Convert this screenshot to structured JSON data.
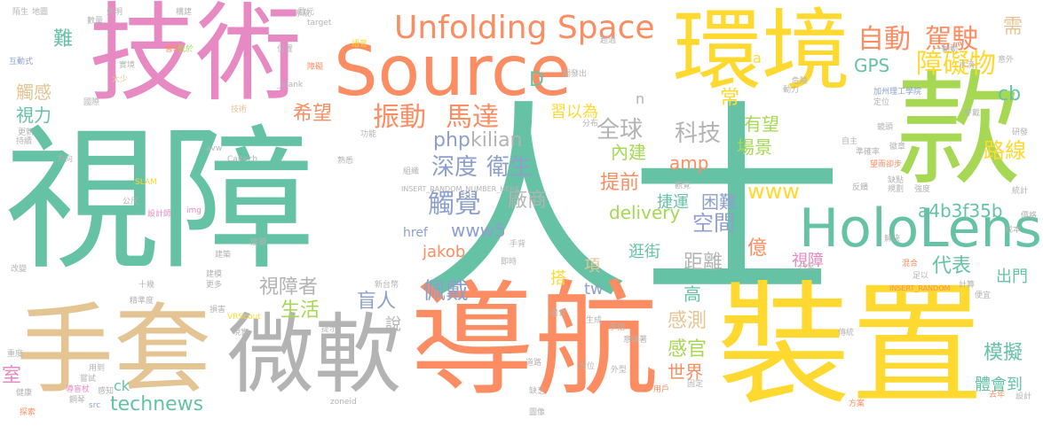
{
  "words": [
    {
      "text": "視障",
      "color": "#66c2a5"
    },
    {
      "text": "人士",
      "color": "#66c2a5"
    },
    {
      "text": "導航",
      "color": "#fc8d62"
    },
    {
      "text": "裝置",
      "color": "#ffd92f"
    },
    {
      "text": "技術",
      "color": "#e78ac3"
    },
    {
      "text": "Source",
      "color": "#fc8d62"
    },
    {
      "text": "環境",
      "color": "#ffd92f"
    },
    {
      "text": "款",
      "color": "#a6d854"
    },
    {
      "text": "手套",
      "color": "#e5c494"
    },
    {
      "text": "微軟",
      "color": "#b3b3b3"
    },
    {
      "text": "HoloLens",
      "color": "#66c2a5"
    },
    {
      "text": "Unfolding Space",
      "color": "#fc8d62"
    },
    {
      "text": "自動",
      "color": "#fc8d62"
    },
    {
      "text": "駕駛",
      "color": "#fc8d62"
    },
    {
      "text": "障礙物",
      "color": "#ffd92f"
    },
    {
      "text": "振動",
      "color": "#fc8d62"
    },
    {
      "text": "馬達",
      "color": "#fc8d62"
    },
    {
      "text": "希望",
      "color": "#fc8d62"
    },
    {
      "text": "深度",
      "color": "#8da0cb"
    },
    {
      "text": "衛生",
      "color": "#8da0cb"
    },
    {
      "text": "觸覺",
      "color": "#8da0cb"
    },
    {
      "text": "全球",
      "color": "#b3b3b3"
    },
    {
      "text": "科技",
      "color": "#b3b3b3"
    },
    {
      "text": "php",
      "color": "#8da0cb"
    },
    {
      "text": "kilian",
      "color": "#b3b3b3"
    },
    {
      "text": "習以為",
      "color": "#ffd92f"
    },
    {
      "text": "常",
      "color": "#ffd92f"
    },
    {
      "text": "GPS",
      "color": "#66c2a5"
    },
    {
      "text": "cb",
      "color": "#66c2a5"
    },
    {
      "text": "路線",
      "color": "#ffd92f"
    },
    {
      "text": "有望",
      "color": "#a6d854"
    },
    {
      "text": "場景",
      "color": "#a6d854"
    },
    {
      "text": "內建",
      "color": "#a6d854"
    },
    {
      "text": "amp",
      "color": "#fc8d62"
    },
    {
      "text": "提前",
      "color": "#fc8d62"
    },
    {
      "text": "www",
      "color": "#ffd92f"
    },
    {
      "text": "困難",
      "color": "#8da0cb"
    },
    {
      "text": "空間",
      "color": "#8da0cb"
    },
    {
      "text": "a4b3f35b",
      "color": "#66c2a5"
    },
    {
      "text": "捷運",
      "color": "#66c2a5"
    },
    {
      "text": "逛街",
      "color": "#66c2a5"
    },
    {
      "text": "視障",
      "color": "#e78ac3"
    },
    {
      "text": "delivery",
      "color": "#a6d854"
    },
    {
      "text": "www5",
      "color": "#8da0cb"
    },
    {
      "text": "jakob",
      "color": "#fc8d62"
    },
    {
      "text": "廠商",
      "color": "#b3b3b3"
    },
    {
      "text": "距離",
      "color": "#b3b3b3"
    },
    {
      "text": "億",
      "color": "#fc8d62"
    },
    {
      "text": "代表",
      "color": "#66c2a5"
    },
    {
      "text": "出門",
      "color": "#66c2a5"
    },
    {
      "text": "視障者",
      "color": "#b3b3b3"
    },
    {
      "text": "盲人",
      "color": "#8da0cb"
    },
    {
      "text": "佩戴",
      "color": "#8da0cb"
    },
    {
      "text": "生活",
      "color": "#a6d854"
    },
    {
      "text": "項",
      "color": "#e5c494"
    },
    {
      "text": "搭",
      "color": "#ffd92f"
    },
    {
      "text": "tw",
      "color": "#8da0cb"
    },
    {
      "text": "高",
      "color": "#66c2a5"
    },
    {
      "text": "感測",
      "color": "#e5c494"
    },
    {
      "text": "說",
      "color": "#b3b3b3"
    },
    {
      "text": "感官",
      "color": "#a6d854"
    },
    {
      "text": "模擬",
      "color": "#66c2a5"
    },
    {
      "text": "體會到",
      "color": "#66c2a5"
    },
    {
      "text": "世界",
      "color": "#fc8d62"
    },
    {
      "text": "technews",
      "color": "#66c2a5"
    },
    {
      "text": "ck",
      "color": "#66c2a5"
    },
    {
      "text": "室",
      "color": "#e78ac3"
    },
    {
      "text": "觸感",
      "color": "#e5c494"
    },
    {
      "text": "視力",
      "color": "#66c2a5"
    },
    {
      "text": "難",
      "color": "#66c2a5"
    },
    {
      "text": "需",
      "color": "#e5c494"
    },
    {
      "text": "D",
      "color": "#66c2a5"
    },
    {
      "text": "href",
      "color": "#8da0cb"
    },
    {
      "text": "n",
      "color": "#b3b3b3"
    },
    {
      "text": "a",
      "color": "#ffd92f"
    },
    {
      "text": "陌生",
      "color": "#b3b3b3"
    },
    {
      "text": "地圖",
      "color": "#b3b3b3"
    },
    {
      "text": "數量",
      "color": "#b3b3b3"
    },
    {
      "text": "失明",
      "color": "#b3b3b3"
    },
    {
      "text": "構建",
      "color": "#b3b3b3"
    },
    {
      "text": "歐元",
      "color": "#b3b3b3"
    },
    {
      "text": "target",
      "color": "#b3b3b3"
    },
    {
      "text": "位置",
      "color": "#b3b3b3"
    },
    {
      "text": "超過",
      "color": "#b3b3b3"
    },
    {
      "text": "開發出",
      "color": "#b3b3b3"
    },
    {
      "text": "互動式",
      "color": "#8da0cb"
    },
    {
      "text": "太少",
      "color": "#e5c494"
    },
    {
      "text": "暫時",
      "color": "#fc8d62"
    },
    {
      "text": "低於",
      "color": "#a6d854"
    },
    {
      "text": "語音",
      "color": "#ffd92f"
    },
    {
      "text": "障礙",
      "color": "#fc8d62"
    },
    {
      "text": "_blank",
      "color": "#b3b3b3"
    },
    {
      "text": "INSERT_RANDOM_NUMBER_HERE",
      "color": "#b3b3b3"
    },
    {
      "text": "SLAM",
      "color": "#ffd92f"
    },
    {
      "text": "Caltech",
      "color": "#b3b3b3"
    },
    {
      "text": "avw",
      "color": "#b3b3b3"
    },
    {
      "text": "img",
      "color": "#e78ac3"
    },
    {
      "text": "設計師",
      "color": "#e78ac3"
    },
    {
      "text": "技術",
      "color": "#e5c494"
    },
    {
      "text": "功能",
      "color": "#b3b3b3"
    },
    {
      "text": "方向",
      "color": "#b3b3b3"
    },
    {
      "text": "持續",
      "color": "#b3b3b3"
    },
    {
      "text": "熟悉",
      "color": "#b3b3b3"
    },
    {
      "text": "組織",
      "color": "#b3b3b3"
    },
    {
      "text": "分布",
      "color": "#b3b3b3"
    },
    {
      "text": "INSERT_RANDOM",
      "color": "#fc8d62"
    },
    {
      "text": "VRScout",
      "color": "#ffd92f"
    },
    {
      "text": "zoneid",
      "color": "#b3b3b3"
    },
    {
      "text": "src",
      "color": "#8da0cb"
    },
    {
      "text": "方案",
      "color": "#fc8d62"
    },
    {
      "text": "統計",
      "color": "#b3b3b3"
    },
    {
      "text": "研發",
      "color": "#b3b3b3"
    },
    {
      "text": "新台幣",
      "color": "#b3b3b3"
    },
    {
      "text": "即時",
      "color": "#b3b3b3"
    },
    {
      "text": "精準度",
      "color": "#b3b3b3"
    },
    {
      "text": "現實",
      "color": "#b3b3b3"
    },
    {
      "text": "手指",
      "color": "#b3b3b3"
    },
    {
      "text": "傳統",
      "color": "#b3b3b3"
    },
    {
      "text": "意味著",
      "color": "#b3b3b3"
    },
    {
      "text": "缺乏",
      "color": "#b3b3b3"
    },
    {
      "text": "用戶",
      "color": "#fc8d62"
    },
    {
      "text": "圖像",
      "color": "#b3b3b3"
    },
    {
      "text": "探索",
      "color": "#fc8d62"
    },
    {
      "text": "導盲杖",
      "color": "#e78ac3"
    },
    {
      "text": "鋼琴",
      "color": "#b3b3b3"
    },
    {
      "text": "感知",
      "color": "#b3b3b3"
    },
    {
      "text": "日常",
      "color": "#b3b3b3"
    },
    {
      "text": "混合",
      "color": "#fc8d62"
    },
    {
      "text": "足以",
      "color": "#b3b3b3"
    },
    {
      "text": "便宜",
      "color": "#b3b3b3"
    },
    {
      "text": "計算",
      "color": "#b3b3b3"
    },
    {
      "text": "去年",
      "color": "#fc8d62"
    },
    {
      "text": "設計",
      "color": "#b3b3b3"
    },
    {
      "text": "鏡頭",
      "color": "#b3b3b3"
    },
    {
      "text": "加州理工學院",
      "color": "#8da0cb"
    },
    {
      "text": "定位",
      "color": "#b3b3b3"
    },
    {
      "text": "自主",
      "color": "#b3b3b3"
    },
    {
      "text": "望而卻步",
      "color": "#fc8d62"
    },
    {
      "text": "準確率",
      "color": "#b3b3b3"
    },
    {
      "text": "規劃",
      "color": "#b3b3b3"
    },
    {
      "text": "強度",
      "color": "#b3b3b3"
    },
    {
      "text": "生成",
      "color": "#b3b3b3"
    },
    {
      "text": "方位",
      "color": "#b3b3b3"
    },
    {
      "text": "適合",
      "color": "#b3b3b3"
    },
    {
      "text": "更多",
      "color": "#b3b3b3"
    },
    {
      "text": "十幾",
      "color": "#b3b3b3"
    },
    {
      "text": "實境",
      "color": "#b3b3b3"
    },
    {
      "text": "缺點",
      "color": "#b3b3b3"
    },
    {
      "text": "解決",
      "color": "#b3b3b3"
    },
    {
      "text": "價格",
      "color": "#b3b3b3"
    },
    {
      "text": "成本",
      "color": "#b3b3b3"
    },
    {
      "text": "動力",
      "color": "#b3b3b3"
    },
    {
      "text": "危險",
      "color": "#b3b3b3"
    },
    {
      "text": "一動動",
      "color": "#b3b3b3"
    },
    {
      "text": "意外",
      "color": "#b3b3b3"
    },
    {
      "text": "水滴",
      "color": "#b3b3b3"
    },
    {
      "text": "系統",
      "color": "#b3b3b3"
    },
    {
      "text": "國際",
      "color": "#b3b3b3"
    },
    {
      "text": "更新",
      "color": "#b3b3b3"
    },
    {
      "text": "公尺",
      "color": "#b3b3b3"
    },
    {
      "text": "反饋",
      "color": "#b3b3b3"
    },
    {
      "text": "接頭",
      "color": "#b3b3b3"
    },
    {
      "text": "重度",
      "color": "#b3b3b3"
    },
    {
      "text": "健康",
      "color": "#b3b3b3"
    },
    {
      "text": "用到",
      "color": "#b3b3b3"
    },
    {
      "text": "嘗試",
      "color": "#b3b3b3"
    },
    {
      "text": "提示",
      "color": "#b3b3b3"
    },
    {
      "text": "道路",
      "color": "#b3b3b3"
    },
    {
      "text": "固定",
      "color": "#b3b3b3"
    },
    {
      "text": "外型",
      "color": "#b3b3b3"
    },
    {
      "text": "改變",
      "color": "#b3b3b3"
    },
    {
      "text": "手背",
      "color": "#b3b3b3"
    },
    {
      "text": "建築",
      "color": "#b3b3b3"
    },
    {
      "text": "建模",
      "color": "#b3b3b3"
    },
    {
      "text": "損害",
      "color": "#b3b3b3"
    },
    {
      "text": "穿戴",
      "color": "#b3b3b3"
    },
    {
      "text": "徽章",
      "color": "#b3b3b3"
    },
    {
      "text": "觀覺",
      "color": "#b3b3b3"
    },
    {
      "text": "反饋到",
      "color": "#b3b3b3"
    },
    {
      "text": "中度",
      "color": "#b3b3b3"
    }
  ]
}
